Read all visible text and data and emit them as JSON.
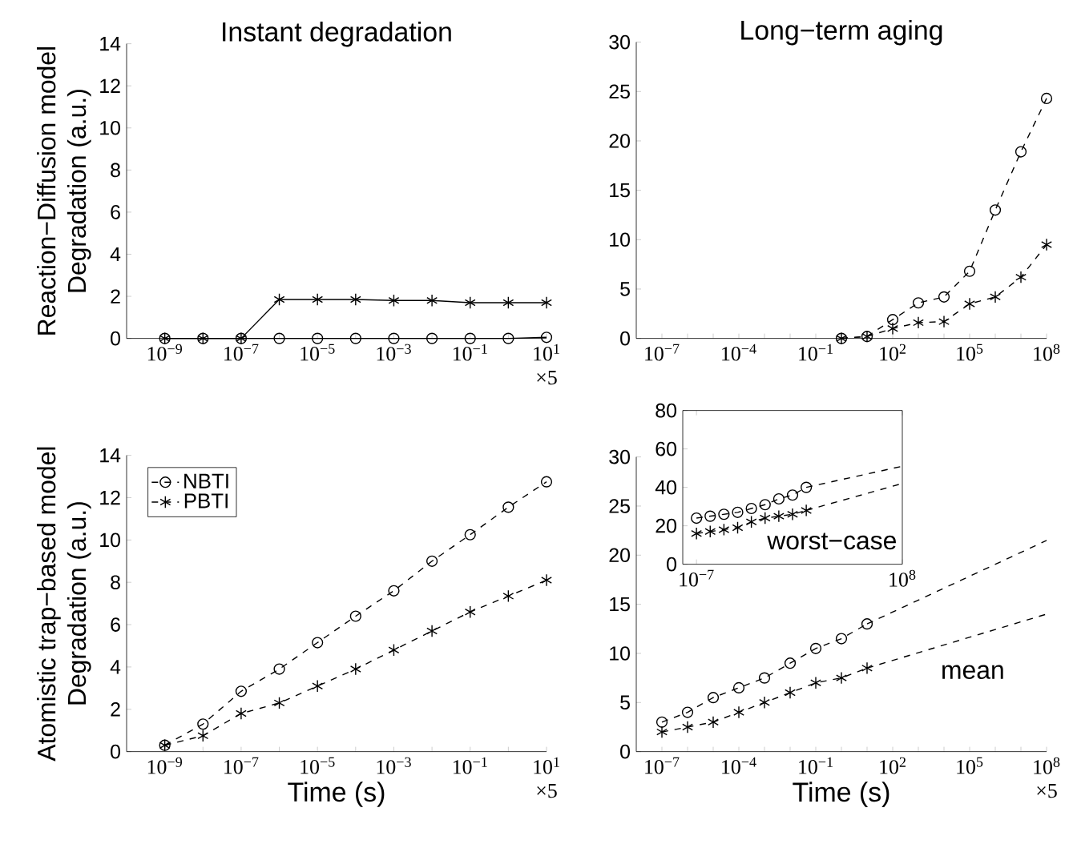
{
  "chart_data": [
    {
      "type": "line",
      "title": "Instant degradation",
      "ylabel": "Reaction−Diffusion model Degradation (a.u.)",
      "log": "x",
      "xlim": [
        1e-10,
        10
      ],
      "ylim": [
        0,
        14
      ],
      "xticks": [
        {
          "value": 1e-09,
          "label": "10$^{−9}$"
        },
        {
          "value": 1e-08,
          "label": null
        },
        {
          "value": 1e-07,
          "label": "10$^{−7}$"
        },
        {
          "value": 1e-06,
          "label": null
        },
        {
          "value": 1e-05,
          "label": "10$^{−5}$"
        },
        {
          "value": 0.0001,
          "label": null
        },
        {
          "value": 0.001,
          "label": "10$^{−3}$"
        },
        {
          "value": 0.01,
          "label": null
        },
        {
          "value": 0.1,
          "label": "10$^{−1}$"
        },
        {
          "value": 1,
          "label": null
        },
        {
          "value": 10,
          "label": "10$^{1}$"
        }
      ],
      "yticks": [
        0,
        2,
        4,
        6,
        8,
        10,
        12,
        14
      ],
      "line_style": "solid",
      "annotations": [
        "×5"
      ],
      "series": [
        {
          "color": "#000000",
          "marker": "circle",
          "x": [
            1e-09,
            1e-08,
            1e-07,
            1e-06,
            1e-05,
            0.0001,
            0.001,
            0.01,
            0.1,
            1,
            10
          ],
          "values": [
            0,
            0,
            0,
            0,
            0,
            0,
            0,
            0,
            0,
            0,
            0.05
          ]
        },
        {
          "color": "#000000",
          "marker": "cross",
          "x": [
            1e-09,
            1e-08,
            1e-07,
            1e-06,
            1e-05,
            0.0001,
            0.001,
            0.01,
            0.1,
            1,
            10
          ],
          "values": [
            0,
            0,
            0,
            1.85,
            1.85,
            1.85,
            1.8,
            1.8,
            1.7,
            1.7,
            1.7
          ]
        }
      ]
    },
    {
      "type": "line",
      "title": "Long−term aging",
      "log": "x",
      "xlim": [
        1e-08,
        100000000.0
      ],
      "ylim": [
        0,
        30
      ],
      "xticks": [
        {
          "value": 1e-07,
          "label": "10$^{−7}$"
        },
        {
          "value": 1e-06,
          "label": null
        },
        {
          "value": 1e-05,
          "label": null
        },
        {
          "value": 0.0001,
          "label": "10$^{−4}$"
        },
        {
          "value": 0.001,
          "label": null
        },
        {
          "value": 0.01,
          "label": null
        },
        {
          "value": 0.1,
          "label": "10$^{−1}$"
        },
        {
          "value": 1,
          "label": null
        },
        {
          "value": 10,
          "label": null
        },
        {
          "value": 100,
          "label": "10$^{2}$"
        },
        {
          "value": 1000.0,
          "label": null
        },
        {
          "value": 10000.0,
          "label": null
        },
        {
          "value": 100000.0,
          "label": "10$^{5}$"
        },
        {
          "value": 1000000.0,
          "label": null
        },
        {
          "value": 10000000.0,
          "label": null
        },
        {
          "value": 100000000.0,
          "label": "10$^{8}$"
        }
      ],
      "yticks": [
        0,
        5,
        10,
        15,
        20,
        25,
        30
      ],
      "line_style": "dashed",
      "series": [
        {
          "color": "#000000",
          "marker": "circle",
          "x": [
            1,
            10,
            100,
            1000.0,
            10000.0,
            100000.0,
            1000000.0,
            10000000.0,
            100000000.0
          ],
          "values": [
            0,
            0.2,
            1.9,
            3.6,
            4.2,
            6.8,
            13.0,
            18.9,
            24.3
          ]
        },
        {
          "color": "#000000",
          "marker": "cross",
          "x": [
            1,
            10,
            100,
            1000.0,
            10000.0,
            100000.0,
            1000000.0,
            10000000.0,
            100000000.0
          ],
          "values": [
            0,
            0.2,
            1.0,
            1.6,
            1.7,
            3.5,
            4.2,
            6.2,
            9.5
          ]
        }
      ]
    },
    {
      "type": "line",
      "xlabel": "Time (s)",
      "ylabel": "Atomistic trap−based model Degradation (a.u.)",
      "log": "x",
      "xlim": [
        1e-10,
        10
      ],
      "ylim": [
        0,
        14
      ],
      "xticks": [
        {
          "value": 1e-09,
          "label": "10$^{−9}$"
        },
        {
          "value": 1e-08,
          "label": null
        },
        {
          "value": 1e-07,
          "label": "10$^{−7}$"
        },
        {
          "value": 1e-06,
          "label": null
        },
        {
          "value": 1e-05,
          "label": "10$^{−5}$"
        },
        {
          "value": 0.0001,
          "label": null
        },
        {
          "value": 0.001,
          "label": "10$^{−3}$"
        },
        {
          "value": 0.01,
          "label": null
        },
        {
          "value": 0.1,
          "label": "10$^{−1}$"
        },
        {
          "value": 1,
          "label": null
        },
        {
          "value": 10,
          "label": "10$^{1}$"
        }
      ],
      "yticks": [
        0,
        2,
        4,
        6,
        8,
        10,
        12,
        14
      ],
      "line_style": "dashed",
      "legend": "top left",
      "annotations": [
        "×5"
      ],
      "series": [
        {
          "name": "NBTI",
          "color": "#000000",
          "marker": "circle",
          "x": [
            1e-09,
            1e-08,
            1e-07,
            1e-06,
            1e-05,
            0.0001,
            0.001,
            0.01,
            0.1,
            1,
            10
          ],
          "values": [
            0.3,
            1.3,
            2.85,
            3.9,
            5.15,
            6.4,
            7.6,
            9.0,
            10.25,
            11.55,
            12.75
          ]
        },
        {
          "name": "PBTI",
          "color": "#000000",
          "marker": "cross",
          "x": [
            1e-09,
            1e-08,
            1e-07,
            1e-06,
            1e-05,
            0.0001,
            0.001,
            0.01,
            0.1,
            1,
            10
          ],
          "values": [
            0.3,
            0.75,
            1.8,
            2.3,
            3.1,
            3.9,
            4.8,
            5.7,
            6.6,
            7.35,
            8.1
          ]
        }
      ]
    },
    {
      "type": "line",
      "xlabel": "Time (s)",
      "log": "x",
      "xlim": [
        1e-08,
        100000000.0
      ],
      "ylim": [
        0,
        30
      ],
      "xticks": [
        {
          "value": 1e-07,
          "label": "10$^{−7}$"
        },
        {
          "value": 1e-06,
          "label": null
        },
        {
          "value": 1e-05,
          "label": null
        },
        {
          "value": 0.0001,
          "label": "10$^{−4}$"
        },
        {
          "value": 0.001,
          "label": null
        },
        {
          "value": 0.01,
          "label": null
        },
        {
          "value": 0.1,
          "label": "10$^{−1}$"
        },
        {
          "value": 1,
          "label": null
        },
        {
          "value": 10,
          "label": null
        },
        {
          "value": 100,
          "label": "10$^{2}$"
        },
        {
          "value": 1000.0,
          "label": null
        },
        {
          "value": 10000.0,
          "label": null
        },
        {
          "value": 100000.0,
          "label": "10$^{5}$"
        },
        {
          "value": 1000000.0,
          "label": null
        },
        {
          "value": 10000000.0,
          "label": null
        },
        {
          "value": 100000000.0,
          "label": "10$^{8}$"
        }
      ],
      "yticks": [
        0,
        5,
        10,
        15,
        20,
        25,
        30
      ],
      "line_style": "dashed",
      "annotations": [
        "×5",
        "mean"
      ],
      "series": [
        {
          "color": "#000000",
          "marker": "circle",
          "x": [
            1e-07,
            1e-06,
            1e-05,
            0.0001,
            0.001,
            0.01,
            0.1,
            1,
            10
          ],
          "values": [
            3,
            4,
            5.5,
            6.5,
            7.5,
            9,
            10.5,
            11.5,
            13
          ]
        },
        {
          "color": "#000000",
          "marker": "cross",
          "x": [
            1e-07,
            1e-06,
            1e-05,
            0.0001,
            0.001,
            0.01,
            0.1,
            1,
            10
          ],
          "values": [
            2,
            2.5,
            3,
            4,
            5,
            6,
            7,
            7.5,
            8.5
          ]
        },
        {
          "color": "#000000",
          "marker": "none",
          "x": [
            10,
            100000000.0
          ],
          "values": [
            13,
            21.5
          ]
        },
        {
          "color": "#000000",
          "marker": "none",
          "x": [
            10,
            100000000.0
          ],
          "values": [
            8.5,
            14
          ]
        }
      ]
    },
    {
      "type": "line",
      "log": "x",
      "xlim": [
        1e-08,
        100000000.0
      ],
      "ylim": [
        0,
        80
      ],
      "xticks": [
        {
          "value": 1e-07,
          "label": "10$^{−7}$"
        },
        {
          "value": 100000000.0,
          "label": "10$^{8}$"
        }
      ],
      "yticks": [
        0,
        20,
        40,
        60,
        80
      ],
      "line_style": "dashed",
      "annotations": [
        "worst−case"
      ],
      "series": [
        {
          "color": "#000000",
          "marker": "circle",
          "x": [
            1e-07,
            1e-06,
            1e-05,
            0.0001,
            0.001,
            0.01,
            0.1,
            1,
            10
          ],
          "values": [
            24,
            25,
            26,
            27,
            29,
            31,
            34,
            36,
            40
          ]
        },
        {
          "color": "#000000",
          "marker": "cross",
          "x": [
            1e-07,
            1e-06,
            1e-05,
            0.0001,
            0.001,
            0.01,
            0.1,
            1,
            10
          ],
          "values": [
            16,
            17,
            18,
            19,
            22,
            24,
            25,
            26,
            28
          ]
        },
        {
          "color": "#000000",
          "marker": "none",
          "x": [
            10,
            100000000.0
          ],
          "values": [
            40,
            51
          ]
        },
        {
          "color": "#000000",
          "marker": "none",
          "x": [
            10,
            100000000.0
          ],
          "values": [
            28,
            42
          ]
        }
      ]
    }
  ]
}
